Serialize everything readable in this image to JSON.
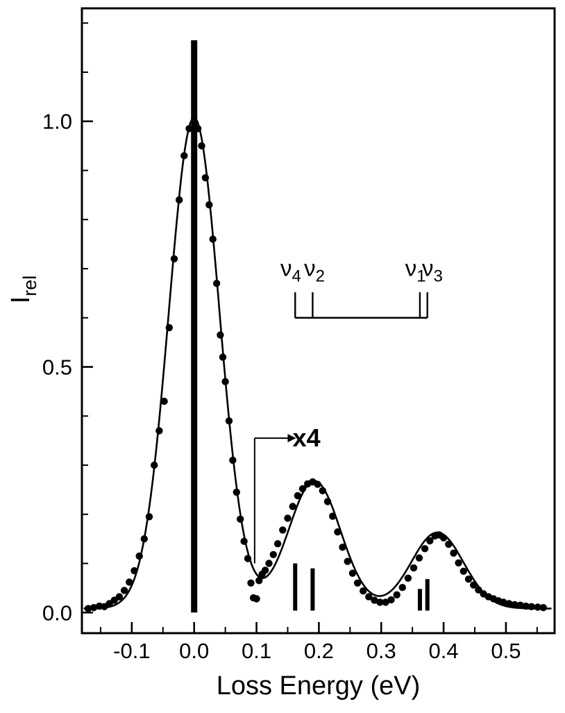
{
  "figure": {
    "background": "#ffffff",
    "ink_color": "#000000"
  },
  "chart_data": {
    "type": "scatter",
    "title": "",
    "xlabel": "Loss Energy (eV)",
    "ylabel_main": "I",
    "ylabel_sub": "rel",
    "xlim": [
      -0.18,
      0.578
    ],
    "ylim": [
      -0.042,
      1.23
    ],
    "x_ticks": [
      -0.1,
      0.0,
      0.1,
      0.2,
      0.3,
      0.4,
      0.5
    ],
    "x_tick_labels": [
      "-0.1",
      "0.0",
      "0.1",
      "0.2",
      "0.3",
      "0.4",
      "0.5"
    ],
    "y_ticks": [
      0.0,
      0.5,
      1.0
    ],
    "y_tick_labels": [
      "0.0",
      "0.5",
      "1.0"
    ],
    "x_minor_step": 0.05,
    "y_minor_step": 0.1,
    "grid": false,
    "legend": "none",
    "points": [
      [
        -0.17,
        0.008
      ],
      [
        -0.161,
        0.01
      ],
      [
        -0.152,
        0.013
      ],
      [
        -0.144,
        0.012
      ],
      [
        -0.136,
        0.018
      ],
      [
        -0.128,
        0.025
      ],
      [
        -0.12,
        0.032
      ],
      [
        -0.112,
        0.045
      ],
      [
        -0.104,
        0.062
      ],
      [
        -0.096,
        0.085
      ],
      [
        -0.088,
        0.115
      ],
      [
        -0.08,
        0.15
      ],
      [
        -0.072,
        0.195
      ],
      [
        -0.064,
        0.3
      ],
      [
        -0.056,
        0.37
      ],
      [
        -0.048,
        0.43
      ],
      [
        -0.04,
        0.58
      ],
      [
        -0.032,
        0.72
      ],
      [
        -0.024,
        0.84
      ],
      [
        -0.016,
        0.93
      ],
      [
        -0.008,
        0.985
      ],
      [
        0.0,
        1.0
      ],
      [
        0.006,
        0.985
      ],
      [
        0.012,
        0.95
      ],
      [
        0.018,
        0.885
      ],
      [
        0.024,
        0.83
      ],
      [
        0.03,
        0.76
      ],
      [
        0.036,
        0.67
      ],
      [
        0.042,
        0.565
      ],
      [
        0.046,
        0.52
      ],
      [
        0.05,
        0.47
      ],
      [
        0.056,
        0.39
      ],
      [
        0.062,
        0.31
      ],
      [
        0.068,
        0.245
      ],
      [
        0.074,
        0.19
      ],
      [
        0.08,
        0.145
      ],
      [
        0.086,
        0.11
      ],
      [
        0.091,
        0.06
      ],
      [
        0.095,
        0.03
      ],
      [
        0.1,
        0.028
      ],
      [
        0.104,
        0.065
      ],
      [
        0.109,
        0.078
      ],
      [
        0.114,
        0.086
      ],
      [
        0.12,
        0.1
      ],
      [
        0.127,
        0.118
      ],
      [
        0.134,
        0.14
      ],
      [
        0.142,
        0.168
      ],
      [
        0.15,
        0.192
      ],
      [
        0.158,
        0.216
      ],
      [
        0.166,
        0.238
      ],
      [
        0.174,
        0.252
      ],
      [
        0.182,
        0.262
      ],
      [
        0.19,
        0.266
      ],
      [
        0.198,
        0.261
      ],
      [
        0.206,
        0.248
      ],
      [
        0.214,
        0.226
      ],
      [
        0.222,
        0.196
      ],
      [
        0.23,
        0.164
      ],
      [
        0.238,
        0.133
      ],
      [
        0.246,
        0.104
      ],
      [
        0.254,
        0.08
      ],
      [
        0.262,
        0.06
      ],
      [
        0.271,
        0.044
      ],
      [
        0.28,
        0.032
      ],
      [
        0.289,
        0.025
      ],
      [
        0.298,
        0.021
      ],
      [
        0.307,
        0.021
      ],
      [
        0.316,
        0.026
      ],
      [
        0.325,
        0.036
      ],
      [
        0.334,
        0.051
      ],
      [
        0.343,
        0.07
      ],
      [
        0.352,
        0.091
      ],
      [
        0.361,
        0.111
      ],
      [
        0.37,
        0.13
      ],
      [
        0.378,
        0.146
      ],
      [
        0.386,
        0.156
      ],
      [
        0.393,
        0.158
      ],
      [
        0.4,
        0.152
      ],
      [
        0.408,
        0.139
      ],
      [
        0.416,
        0.121
      ],
      [
        0.424,
        0.101
      ],
      [
        0.432,
        0.084
      ],
      [
        0.44,
        0.068
      ],
      [
        0.448,
        0.056
      ],
      [
        0.456,
        0.046
      ],
      [
        0.464,
        0.038
      ],
      [
        0.472,
        0.032
      ],
      [
        0.48,
        0.028
      ],
      [
        0.488,
        0.024
      ],
      [
        0.496,
        0.021
      ],
      [
        0.505,
        0.018
      ],
      [
        0.514,
        0.016
      ],
      [
        0.523,
        0.015
      ],
      [
        0.532,
        0.013
      ],
      [
        0.541,
        0.012
      ],
      [
        0.551,
        0.011
      ],
      [
        0.56,
        0.01
      ]
    ],
    "fit_curve": {
      "elastic": {
        "center": 0.0,
        "sigma": 0.0405,
        "amp": 1.0
      },
      "loss_peaks_displayed": [
        {
          "center": 0.193,
          "sigma": 0.042,
          "amp": 0.26
        },
        {
          "center": 0.39,
          "sigma": 0.042,
          "amp": 0.155
        }
      ],
      "baseline": 0.008
    },
    "elastic_bar": {
      "x": 0.0,
      "y0": 0.0,
      "y1": 1.165
    },
    "mode_markers": [
      {
        "mode": "nu4",
        "x": 0.162,
        "height": 0.1
      },
      {
        "mode": "nu2",
        "x": 0.19,
        "height": 0.09
      },
      {
        "mode": "nu1",
        "x": 0.362,
        "height": 0.048
      },
      {
        "mode": "nu3",
        "x": 0.374,
        "height": 0.068
      }
    ],
    "mode_bracket": {
      "line_y": 0.6,
      "tick_top_y": 0.652,
      "x_start": 0.162,
      "x_end": 0.374,
      "tick_xs": [
        0.162,
        0.19,
        0.362,
        0.374
      ],
      "labels": [
        {
          "base": "ν",
          "sub": "4",
          "x": 0.155
        },
        {
          "base": "ν",
          "sub": "2",
          "x": 0.193
        },
        {
          "base": "ν",
          "sub": "1",
          "x": 0.355
        },
        {
          "base": "ν",
          "sub": "3",
          "x": 0.382
        }
      ],
      "label_y": 0.685
    },
    "scale_annotation": {
      "text": "x4",
      "x_line": 0.097,
      "y_bottom": 0.1,
      "y_top": 0.355,
      "x_arrow_end": 0.15,
      "text_x": 0.158,
      "text_y": 0.355
    }
  }
}
